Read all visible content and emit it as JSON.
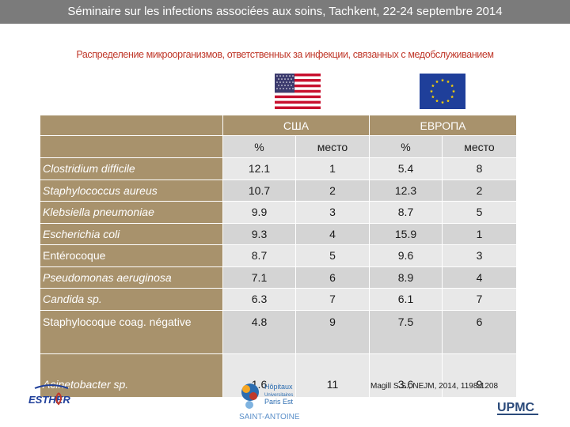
{
  "header": {
    "title": "Séminaire sur les infections associées aux soins, Tachkent, 22-24 septembre 2014"
  },
  "subtitle": "Распределение микроорганизмов, ответственных за инфекции, связанных с медобслуживанием",
  "flags": {
    "left": "us-flag-icon",
    "right": "eu-flag-icon"
  },
  "table": {
    "group_headers": [
      "США",
      "ЕВРОПА"
    ],
    "sub_headers": [
      "%",
      "место",
      "%",
      "место"
    ],
    "rows": [
      {
        "name": "Clostridium difficile",
        "us_pct": "12.1",
        "us_rank": "1",
        "eu_pct": "5.4",
        "eu_rank": "8"
      },
      {
        "name": "Staphylococcus aureus",
        "us_pct": "10.7",
        "us_rank": "2",
        "eu_pct": "12.3",
        "eu_rank": "2"
      },
      {
        "name": "Klebsiella pneumoniae",
        "us_pct": "9.9",
        "us_rank": "3",
        "eu_pct": "8.7",
        "eu_rank": "5"
      },
      {
        "name": "Escherichia coli",
        "us_pct": "9.3",
        "us_rank": "4",
        "eu_pct": "15.9",
        "eu_rank": "1"
      },
      {
        "name": "Entérocoque",
        "us_pct": "8.7",
        "us_rank": "5",
        "eu_pct": "9.6",
        "eu_rank": "3"
      },
      {
        "name": "Pseudomonas aeruginosa",
        "us_pct": "7.1",
        "us_rank": "6",
        "eu_pct": "8.9",
        "eu_rank": "4"
      },
      {
        "name": "Candida sp.",
        "us_pct": "6.3",
        "us_rank": "7",
        "eu_pct": "6.1",
        "eu_rank": "7"
      },
      {
        "name": "Staphylocoque coag. négative",
        "us_pct": "4.8",
        "us_rank": "9",
        "eu_pct": "7.5",
        "eu_rank": "6"
      },
      {
        "name": "Acinetobacter sp.",
        "us_pct": "1.6",
        "us_rank": "11",
        "eu_pct": "3.6",
        "eu_rank": "9"
      }
    ]
  },
  "citation": "Magill S.S., NEJM, 2014, 1198-1208",
  "logos": {
    "esther": "ESTHER",
    "hopitaux_line1": "Hôpitaux",
    "hopitaux_line2": "Universitaires",
    "hopitaux_line3": "Paris Est",
    "saint_antoine": "SAINT-ANTOINE",
    "upmc": "UPMC"
  },
  "colors": {
    "header_bar": "#7b7b7b",
    "subtitle": "#c0392b",
    "table_header": "#a8926c",
    "row_light": "#e8e8e8",
    "row_dark": "#d4d4d4"
  }
}
